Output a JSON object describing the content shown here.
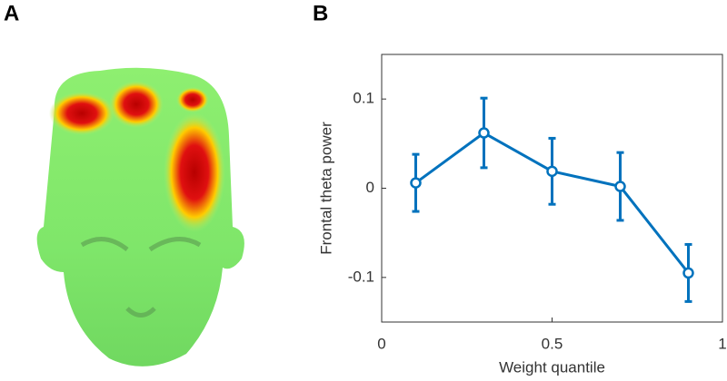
{
  "panel_labels": [
    "A",
    "B"
  ],
  "chart_data": {
    "type": "line",
    "xlabel": "Weight quantile",
    "ylabel": "Frontal theta power",
    "x": [
      0.1,
      0.3,
      0.5,
      0.7,
      0.9
    ],
    "series": [
      {
        "color": "#0072bd",
        "values": [
          0.006,
          0.062,
          0.019,
          0.002,
          -0.095
        ],
        "errors": [
          0.032,
          0.039,
          0.037,
          0.038,
          0.032
        ]
      }
    ],
    "xlim": [
      0,
      1
    ],
    "xticks": [
      0,
      0.5,
      1
    ],
    "ylim": [
      -0.15,
      0.15
    ],
    "yticks": [
      -0.1,
      0,
      0.1
    ]
  }
}
